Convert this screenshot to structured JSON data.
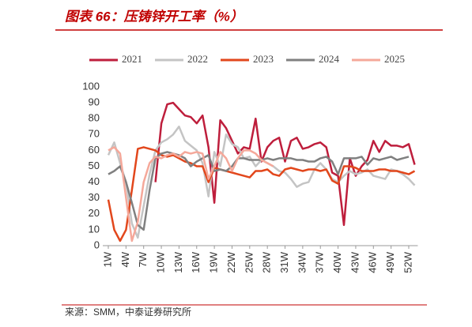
{
  "chart_data": {
    "type": "line",
    "title": "图表 66：压铸锌开工率（%）",
    "source": "来源：SMM，中泰证券研究所",
    "categories": [
      "1W",
      null,
      null,
      "4W",
      null,
      null,
      "7W",
      null,
      null,
      "10W",
      null,
      null,
      "13W",
      null,
      null,
      "16W",
      null,
      null,
      "19W",
      null,
      null,
      "22W",
      null,
      null,
      "25W",
      null,
      null,
      "28W",
      null,
      null,
      "31W",
      null,
      null,
      "34W",
      null,
      null,
      "37W",
      null,
      null,
      "40W",
      null,
      null,
      "43W",
      null,
      null,
      "46W",
      null,
      null,
      "49W",
      null,
      null,
      "52W",
      null
    ],
    "ylim": [
      0,
      100
    ],
    "yticks": [
      0,
      10,
      20,
      30,
      40,
      50,
      60,
      70,
      80,
      90,
      100
    ],
    "grid": false,
    "legend": "top",
    "series": [
      {
        "name": "2021",
        "color": "#be1e3c",
        "values": [
          null,
          null,
          null,
          null,
          null,
          null,
          null,
          null,
          40,
          77,
          89,
          90,
          86,
          82,
          81,
          77,
          82,
          62,
          27,
          79,
          74,
          66,
          58,
          62,
          61,
          80,
          53,
          62,
          66,
          68,
          53,
          66,
          68,
          61,
          62,
          64,
          65,
          62,
          46,
          44,
          13,
          55,
          44,
          50,
          54,
          66,
          59,
          66,
          63,
          63,
          62,
          64,
          51
        ]
      },
      {
        "name": "2022",
        "color": "#c4c4c4",
        "values": [
          57,
          65,
          52,
          40,
          14,
          5,
          25,
          45,
          60,
          65,
          67,
          70,
          75,
          66,
          63,
          60,
          52,
          31,
          59,
          50,
          70,
          64,
          62,
          55,
          56,
          50,
          54,
          52,
          50,
          47,
          46,
          42,
          37,
          39,
          40,
          48,
          52,
          48,
          42,
          40,
          44,
          47,
          45,
          46,
          48,
          44,
          43,
          42,
          48,
          47,
          45,
          42,
          38
        ]
      },
      {
        "name": "2023",
        "color": "#e2471c",
        "values": [
          29,
          10,
          3,
          10,
          35,
          61,
          62,
          61,
          60,
          57,
          56,
          57,
          55,
          53,
          52,
          50,
          50,
          40,
          49,
          48,
          47,
          46,
          45,
          44,
          43,
          47,
          47,
          48,
          45,
          44,
          48,
          49,
          48,
          47,
          48,
          48,
          47,
          48,
          41,
          39,
          50,
          50,
          49,
          47,
          47,
          47,
          48,
          48,
          47,
          47,
          46,
          45,
          47
        ]
      },
      {
        "name": "2024",
        "color": "#808080",
        "values": [
          45,
          47,
          50,
          40,
          27,
          13,
          10,
          35,
          55,
          58,
          59,
          58,
          57,
          55,
          50,
          53,
          55,
          57,
          47,
          48,
          47,
          50,
          55,
          55,
          54,
          54,
          54,
          55,
          54,
          55,
          55,
          55,
          54,
          54,
          53,
          53,
          55,
          56,
          53,
          45,
          55,
          55,
          55,
          56,
          51,
          55,
          54,
          55,
          56,
          54,
          55,
          56,
          null
        ]
      },
      {
        "name": "2025",
        "color": "#f5a89a",
        "values": [
          60,
          62,
          58,
          30,
          3,
          15,
          40,
          52,
          56,
          55,
          57,
          58,
          56,
          59,
          58,
          59,
          58,
          42,
          50,
          59,
          55,
          47,
          55,
          60,
          60,
          58,
          54,
          52,
          50,
          null,
          null,
          null,
          null,
          null,
          null,
          null,
          null,
          null,
          null,
          null,
          null,
          null,
          null,
          null,
          null,
          null,
          null,
          null,
          null,
          null,
          null,
          null,
          null
        ]
      }
    ]
  }
}
